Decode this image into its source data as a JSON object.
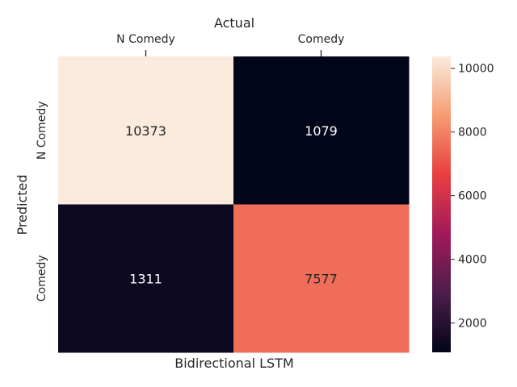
{
  "chart_data": {
    "type": "heatmap",
    "title": "Actual",
    "xlabel": "Bidirectional LSTM",
    "ylabel": "Predicted",
    "x_categories": [
      "N Comedy",
      "Comedy"
    ],
    "y_categories": [
      "N Comedy",
      "Comedy"
    ],
    "values": [
      [
        10373,
        1079
      ],
      [
        1311,
        7577
      ]
    ],
    "value_labels": [
      [
        "10373",
        "1079"
      ],
      [
        "1311",
        "7577"
      ]
    ],
    "colorbar": {
      "min": 1079,
      "max": 10373,
      "ticks": [
        "2000",
        "4000",
        "6000",
        "8000",
        "10000"
      ]
    },
    "colormap": [
      "#03051a",
      "#4c1d4b",
      "#a11a5b",
      "#e83f3f",
      "#f69c73",
      "#faebdd"
    ]
  }
}
